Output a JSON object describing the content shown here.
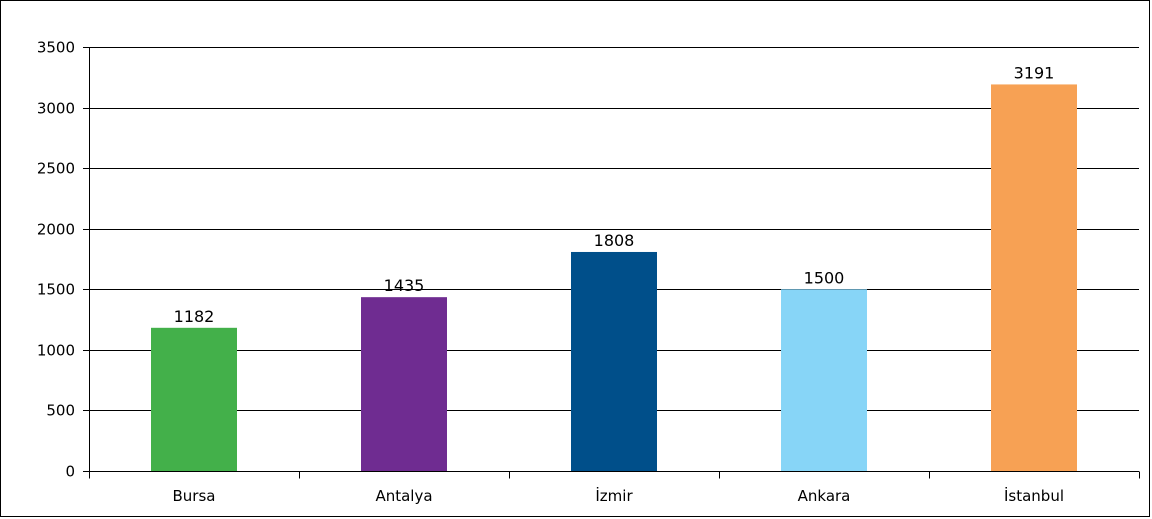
{
  "chart_data": {
    "type": "bar",
    "categories": [
      "Bursa",
      "Antalya",
      "İzmir",
      "Ankara",
      "İstanbul"
    ],
    "values": [
      1182,
      1435,
      1808,
      1500,
      3191
    ],
    "data_labels": [
      "1182",
      "1435",
      "1808",
      "1500",
      "3191"
    ],
    "colors": [
      "#43b04a",
      "#6f2c91",
      "#004f8a",
      "#87d5f7",
      "#f7a154"
    ],
    "title": "",
    "xlabel": "",
    "ylabel": "",
    "ylim": [
      0,
      3500
    ],
    "yticks": [
      0,
      500,
      1000,
      1500,
      2000,
      2500,
      3000,
      3500
    ],
    "ytick_labels": [
      "0",
      "500",
      "1000",
      "1500",
      "2000",
      "2500",
      "3000",
      "3500"
    ],
    "grid": true,
    "legend": "none"
  }
}
